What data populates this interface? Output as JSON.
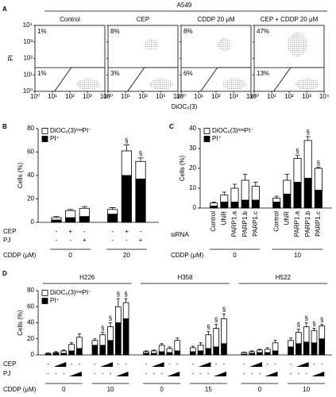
{
  "chart_data": [
    {
      "type": "scatter",
      "letter": "A",
      "title": "A549",
      "xlabel": "DiOC₆(3)",
      "ylabel": "PI",
      "log": true,
      "xlim": [
        1,
        10000
      ],
      "ylim": [
        1,
        10000
      ],
      "xticks": [
        {
          "value": 1,
          "label": "10⁰"
        },
        {
          "value": 10,
          "label": "10¹"
        },
        {
          "value": 100,
          "label": "10²"
        },
        {
          "value": 1000,
          "label": "10³"
        },
        {
          "value": 10000,
          "label": "10⁴"
        }
      ],
      "yticks": [
        {
          "value": 1,
          "label": "10⁰"
        },
        {
          "value": 10,
          "label": "10¹"
        },
        {
          "value": 100,
          "label": "10²"
        },
        {
          "value": 1000,
          "label": "10³"
        },
        {
          "value": 10000,
          "label": "10⁴"
        }
      ],
      "plots": [
        {
          "title": "Control",
          "values": [
            1,
            1
          ],
          "value_labels": [
            "1%",
            "1%"
          ]
        },
        {
          "title": "CEP",
          "values": [
            8,
            3
          ],
          "value_labels": [
            "8%",
            "3%"
          ]
        },
        {
          "title": "CDDP 20 μM",
          "values": [
            8,
            6
          ],
          "value_labels": [
            "8%",
            "6%"
          ]
        },
        {
          "title": "CEP + CDDP 20 μM",
          "values": [
            47,
            13
          ],
          "value_labels": [
            "47%",
            "13%"
          ]
        }
      ]
    },
    {
      "type": "bar",
      "letter": "B",
      "ylabel": "Cells (%)",
      "ylim": [
        0,
        80
      ],
      "yticks": [
        0,
        20,
        40,
        60,
        80
      ],
      "series": [
        {
          "name": "PI⁺",
          "color": "#000000",
          "values": [
            2,
            4,
            5,
            7,
            40,
            37
          ]
        },
        {
          "name": "DiOC₆(3)ˡᵒʷPI⁻",
          "color": "#ffffff",
          "values": [
            2,
            6,
            7,
            4,
            21,
            15
          ],
          "errors": [
            1,
            1,
            1.5,
            1.5,
            5,
            3
          ]
        }
      ],
      "markers": [
        null,
        null,
        null,
        null,
        "§",
        "§"
      ],
      "row_names": [
        "CEP",
        "PJ"
      ],
      "dose_name": "CDDP (μM)",
      "sections": [
        {
          "groups": [
            {
              "dose": "0",
              "rows": [
                [
                  "-",
                  "+",
                  "-"
                ],
                [
                  "-",
                  "-",
                  "+"
                ]
              ]
            },
            {
              "dose": "20",
              "rows": [
                [
                  "-",
                  "+",
                  "-"
                ],
                [
                  "-",
                  "-",
                  "+"
                ]
              ]
            }
          ]
        }
      ]
    },
    {
      "type": "bar",
      "letter": "C",
      "ylabel": "Cells (%)",
      "ylim": [
        0,
        40
      ],
      "yticks": [
        0,
        10,
        20,
        30,
        40
      ],
      "rotated_row_labels": true,
      "series": [
        {
          "name": "PI⁺",
          "color": "#000000",
          "values": [
            1,
            3,
            3,
            4,
            4,
            3,
            7,
            13,
            15,
            9
          ]
        },
        {
          "name": "DiOC₆(3)ˡᵒʷPI⁻",
          "color": "#ffffff",
          "values": [
            1.5,
            3.5,
            7,
            10,
            7,
            2,
            7,
            12,
            19,
            11
          ],
          "errors": [
            0.5,
            1.5,
            2,
            3,
            2,
            1,
            3,
            1.5,
            2,
            0.5
          ]
        }
      ],
      "markers": [
        null,
        null,
        null,
        null,
        null,
        null,
        null,
        "§",
        "§",
        "§"
      ],
      "row_names": [
        "siRNA"
      ],
      "dose_name": "CDDP (μM)",
      "sections": [
        {
          "groups": [
            {
              "dose": "0",
              "rows": [
                [
                  "Control",
                  "UNR",
                  "PARP1.a",
                  "PARP1.b",
                  "PARP1.c"
                ]
              ]
            },
            {
              "dose": "10",
              "rows": [
                [
                  "Control",
                  "UNR",
                  "PARP1.a",
                  "PARP1.b",
                  "PARP1.c"
                ]
              ]
            }
          ]
        }
      ]
    },
    {
      "type": "bar",
      "letter": "D",
      "ylabel": "Cells (%)",
      "ylim": [
        0,
        80
      ],
      "yticks": [
        0,
        20,
        40,
        60,
        80
      ],
      "series": [
        {
          "name": "PI⁺",
          "color": "#000000",
          "values": [
            1,
            2,
            2,
            5,
            8,
            12,
            12,
            18,
            40,
            45,
            2,
            2,
            4,
            3,
            5,
            4,
            5,
            8,
            10,
            14,
            1,
            2,
            3,
            3,
            5,
            10,
            14,
            16,
            15,
            20
          ]
        },
        {
          "name": "DiOC₆(3)ˡᵒʷPI⁻",
          "color": "#ffffff",
          "values": [
            1,
            1,
            3,
            8,
            14,
            6,
            13,
            17,
            20,
            20,
            2,
            3,
            8,
            5,
            13,
            5,
            7,
            17,
            23,
            31,
            2,
            2,
            3,
            4,
            10,
            8,
            14,
            19,
            15,
            16
          ],
          "errors": [
            0.5,
            1,
            1,
            2,
            4,
            2,
            3,
            5,
            10,
            5,
            1,
            1,
            2,
            2,
            3,
            2,
            3,
            4,
            5,
            6,
            0.5,
            1,
            1,
            2,
            3,
            3,
            4,
            5,
            3,
            2
          ]
        }
      ],
      "markers": [
        null,
        null,
        null,
        null,
        null,
        null,
        "§",
        "§",
        "§",
        "§",
        null,
        null,
        null,
        null,
        null,
        null,
        null,
        "§",
        "§",
        "§",
        null,
        null,
        null,
        null,
        null,
        null,
        "§",
        "§",
        "§",
        "§"
      ],
      "row_names": [
        "CEP",
        "PJ"
      ],
      "dose_name": "CDDP (μM)",
      "sections": [
        {
          "title": "H226",
          "groups": [
            {
              "dose": "0",
              "rows": [
                [
                  "-",
                  null,
                  null,
                  "-",
                  "-"
                ],
                [
                  "-",
                  "-",
                  "-",
                  null,
                  null
                ]
              ]
            },
            {
              "dose": "10",
              "rows": [
                [
                  "-",
                  null,
                  null,
                  "-",
                  "-"
                ],
                [
                  "-",
                  "-",
                  "-",
                  null,
                  null
                ]
              ]
            }
          ]
        },
        {
          "title": "H358",
          "groups": [
            {
              "dose": "0",
              "rows": [
                [
                  "-",
                  null,
                  null,
                  "-",
                  "-"
                ],
                [
                  "-",
                  "-",
                  "-",
                  null,
                  null
                ]
              ]
            },
            {
              "dose": "15",
              "rows": [
                [
                  "-",
                  null,
                  null,
                  "-",
                  "-"
                ],
                [
                  "-",
                  "-",
                  "-",
                  null,
                  null
                ]
              ]
            }
          ]
        },
        {
          "title": "H522",
          "groups": [
            {
              "dose": "0",
              "rows": [
                [
                  "-",
                  null,
                  null,
                  "-",
                  "-"
                ],
                [
                  "-",
                  "-",
                  "-",
                  null,
                  null
                ]
              ]
            },
            {
              "dose": "10",
              "rows": [
                [
                  "-",
                  null,
                  null,
                  "-",
                  "-"
                ],
                [
                  "-",
                  "-",
                  "-",
                  null,
                  null
                ]
              ]
            }
          ]
        }
      ]
    }
  ]
}
